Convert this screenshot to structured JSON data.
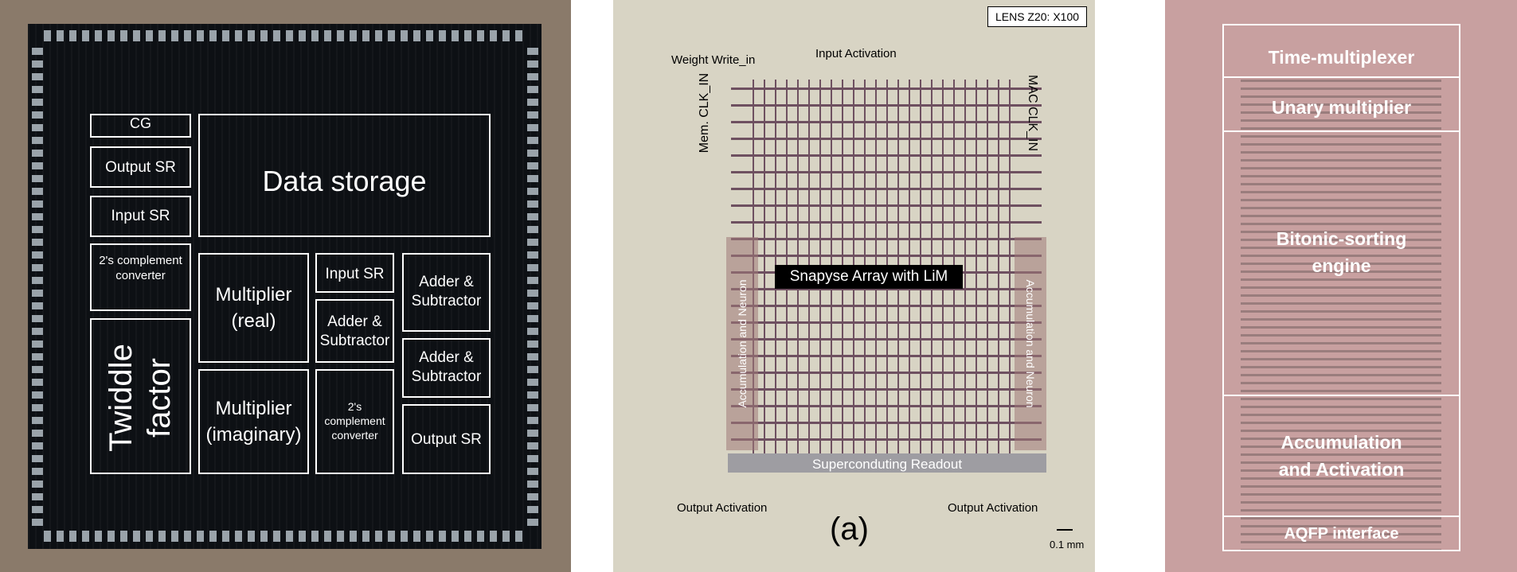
{
  "panel1": {
    "labels": {
      "cg": "CG",
      "output_sr_top": "Output SR",
      "data_storage": "Data storage",
      "input_sr_left": "Input SR",
      "twos_complement_left": "2's complement converter",
      "multiplier_real": "Multiplier (real)",
      "input_sr_mid": "Input SR",
      "adder_subtractor_1": "Adder & Subtractor",
      "adder_subtractor_2": "Adder & Subtractor",
      "adder_subtractor_3": "Adder & Subtractor",
      "twiddle_factor": "Twiddle factor",
      "multiplier_imaginary": "Multiplier (imaginary)",
      "twos_complement_mid": "2's complement converter",
      "output_sr_bottom": "Output SR"
    }
  },
  "panel2": {
    "labels": {
      "lens": "LENS Z20: X100",
      "weight_write_in": "Weight Write_in",
      "input_activation": "Input Activation",
      "mem_clk_in": "Mem. CLK_IN",
      "mac_clk_in": "MAC CLK_IN",
      "synapse_array": "Snapyse Array with LiM",
      "accumulation_left": "Accumulation and Neuron",
      "accumulation_right": "Accumulation and Neuron",
      "readout": "Superconduting Readout",
      "output_activation_left": "Output Activation",
      "output_activation_right": "Output Activation",
      "panel_tag": "(a)",
      "scale": "0.1 mm"
    }
  },
  "panel3": {
    "labels": {
      "time_multiplexer": "Time-multiplexer",
      "unary_multiplier": "Unary multiplier",
      "bitonic_1": "Bitonic-sorting",
      "bitonic_2": "engine",
      "accum_1": "Accumulation",
      "accum_2": "and Activation",
      "aqfp": "AQFP interface"
    }
  }
}
